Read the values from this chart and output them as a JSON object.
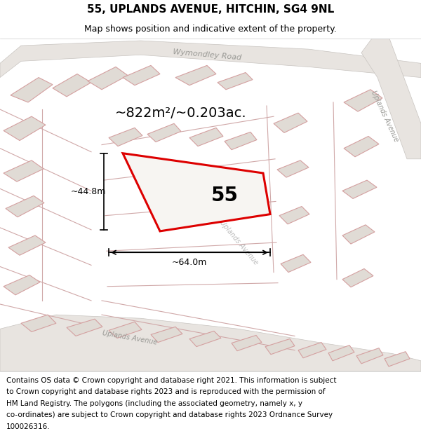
{
  "title": "55, UPLANDS AVENUE, HITCHIN, SG4 9NL",
  "subtitle": "Map shows position and indicative extent of the property.",
  "footer_line1": "Contains OS data © Crown copyright and database right 2021. This information is subject",
  "footer_line2": "to Crown copyright and database rights 2023 and is reproduced with the permission of",
  "footer_line3": "HM Land Registry. The polygons (including the associated geometry, namely x, y",
  "footer_line4": "co-ordinates) are subject to Crown copyright and database rights 2023 Ordnance Survey",
  "footer_line5": "100026316.",
  "bg_white": "#ffffff",
  "map_bg": "#f7f5f2",
  "road_fill": "#e8e4e0",
  "road_edge": "#c8c4c0",
  "plot_red": "#dd0000",
  "plot_pink": "#e8b0b0",
  "bldg_fill": "#e0dbd5",
  "bldg_edge": "#d4a0a0",
  "label_55": "55",
  "area_label": "~822m²/~0.203ac.",
  "dim_width": "~64.0m",
  "dim_height": "~44.8m",
  "road_label_wymondley": "Wymondley Road",
  "road_label_uplands_right": "Uplands Avenue",
  "road_label_uplands_bottom": "Uplands Avenue",
  "title_fontsize": 11,
  "subtitle_fontsize": 9,
  "footer_fontsize": 7.5
}
